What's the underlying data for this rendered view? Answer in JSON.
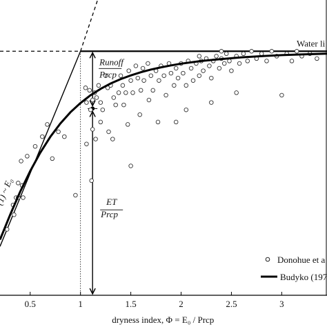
{
  "chart_data": {
    "type": "scatter",
    "title": "",
    "xlabel": "dryness index, Φ = E₀ / Prcp",
    "ylabel": "",
    "xlim": [
      0.2,
      3.45
    ],
    "ylim": [
      0.0,
      1.21
    ],
    "x_ticks": [
      0.5,
      1,
      1.5,
      2,
      2.5,
      3
    ],
    "x_tick_labels": [
      "0.5",
      "1",
      "1.5",
      "2",
      "2.5",
      "3"
    ],
    "grid": false,
    "legend_position": "bottom-right",
    "water_limit": {
      "y": 1.0,
      "label": "Water li"
    },
    "energy_limit_label": "(1) ~ E₀",
    "annotations": {
      "runoff_top": "Runoff",
      "runoff_bottom": "Prcp",
      "et_top": "ET",
      "et_bottom": "Prcp",
      "phi_marker_x": 1.0,
      "arrow_x": 1.12,
      "arrow_split_y": 0.765
    },
    "series": [
      {
        "name": "Donohue et a",
        "kind": "scatter",
        "points": [
          [
            0.27,
            0.27
          ],
          [
            0.33,
            0.37
          ],
          [
            0.36,
            0.4
          ],
          [
            0.38,
            0.46
          ],
          [
            0.42,
            0.45
          ],
          [
            0.41,
            0.55
          ],
          [
            0.47,
            0.57
          ],
          [
            0.55,
            0.61
          ],
          [
            0.62,
            0.65
          ],
          [
            0.67,
            0.7
          ],
          [
            0.78,
            0.67
          ],
          [
            0.84,
            0.65
          ],
          [
            0.72,
            0.56
          ],
          [
            0.95,
            0.41
          ],
          [
            0.34,
            0.33
          ],
          [
            0.38,
            0.4
          ],
          [
            0.43,
            0.4
          ],
          [
            1.05,
            0.85
          ],
          [
            1.06,
            0.79
          ],
          [
            1.09,
            0.84
          ],
          [
            1.1,
            0.76
          ],
          [
            1.12,
            0.8
          ],
          [
            1.14,
            0.83
          ],
          [
            1.16,
            0.81
          ],
          [
            1.12,
            0.68
          ],
          [
            1.15,
            0.64
          ],
          [
            1.11,
            0.47
          ],
          [
            1.18,
            0.86
          ],
          [
            1.2,
            0.79
          ],
          [
            1.22,
            0.76
          ],
          [
            1.2,
            0.71
          ],
          [
            1.25,
            0.9
          ],
          [
            1.27,
            0.85
          ],
          [
            1.3,
            0.86
          ],
          [
            1.33,
            0.81
          ],
          [
            1.35,
            0.78
          ],
          [
            1.28,
            0.67
          ],
          [
            1.32,
            0.64
          ],
          [
            1.38,
            0.83
          ],
          [
            1.4,
            0.9
          ],
          [
            1.42,
            0.86
          ],
          [
            1.43,
            0.78
          ],
          [
            1.45,
            0.83
          ],
          [
            1.48,
            0.92
          ],
          [
            1.5,
            0.88
          ],
          [
            1.52,
            0.83
          ],
          [
            1.47,
            0.7
          ],
          [
            1.55,
            0.94
          ],
          [
            1.57,
            0.89
          ],
          [
            1.6,
            0.84
          ],
          [
            1.62,
            0.93
          ],
          [
            1.63,
            0.88
          ],
          [
            1.59,
            0.74
          ],
          [
            1.67,
            0.95
          ],
          [
            1.7,
            0.9
          ],
          [
            1.68,
            0.8
          ],
          [
            1.72,
            0.84
          ],
          [
            1.75,
            0.92
          ],
          [
            1.78,
            0.88
          ],
          [
            1.8,
            0.94
          ],
          [
            1.77,
            0.71
          ],
          [
            1.83,
            0.9
          ],
          [
            1.85,
            0.82
          ],
          [
            1.88,
            0.95
          ],
          [
            1.9,
            0.91
          ],
          [
            1.93,
            0.86
          ],
          [
            1.95,
            0.93
          ],
          [
            1.97,
            0.89
          ],
          [
            2.0,
            0.95
          ],
          [
            2.02,
            0.91
          ],
          [
            2.05,
            0.86
          ],
          [
            2.07,
            0.96
          ],
          [
            2.1,
            0.93
          ],
          [
            2.12,
            0.88
          ],
          [
            2.15,
            0.95
          ],
          [
            2.18,
            0.9
          ],
          [
            2.2,
            0.96
          ],
          [
            2.22,
            0.92
          ],
          [
            2.25,
            0.97
          ],
          [
            2.28,
            0.94
          ],
          [
            2.3,
            0.89
          ],
          [
            2.32,
            0.96
          ],
          [
            2.35,
            0.98
          ],
          [
            2.38,
            0.93
          ],
          [
            2.4,
            0.97
          ],
          [
            2.43,
            0.95
          ],
          [
            2.45,
            0.99
          ],
          [
            2.48,
            0.96
          ],
          [
            2.5,
            0.92
          ],
          [
            2.55,
            0.98
          ],
          [
            2.58,
            0.95
          ],
          [
            2.62,
            0.99
          ],
          [
            2.66,
            0.96
          ],
          [
            2.7,
            1.0
          ],
          [
            2.75,
            0.97
          ],
          [
            2.8,
            0.99
          ],
          [
            2.85,
            0.96
          ],
          [
            2.9,
            1.0
          ],
          [
            2.95,
            0.98
          ],
          [
            3.05,
            0.99
          ],
          [
            3.1,
            0.96
          ],
          [
            3.15,
            1.0
          ],
          [
            3.2,
            0.98
          ],
          [
            3.28,
            0.99
          ],
          [
            3.35,
            0.97
          ],
          [
            2.3,
            0.79
          ],
          [
            2.55,
            0.83
          ],
          [
            3.0,
            0.82
          ],
          [
            2.05,
            0.76
          ],
          [
            1.5,
            0.53
          ],
          [
            1.95,
            0.71
          ],
          [
            2.18,
            0.98
          ],
          [
            2.4,
            1.0
          ],
          [
            1.06,
            0.62
          ]
        ]
      },
      {
        "name": "Budyko (197",
        "kind": "line",
        "points": [
          [
            0.2,
            0.228
          ],
          [
            0.3,
            0.329
          ],
          [
            0.4,
            0.424
          ],
          [
            0.5,
            0.509
          ],
          [
            0.6,
            0.584
          ],
          [
            0.7,
            0.649
          ],
          [
            0.8,
            0.704
          ],
          [
            0.9,
            0.75
          ],
          [
            1.0,
            0.788
          ],
          [
            1.1,
            0.82
          ],
          [
            1.2,
            0.846
          ],
          [
            1.3,
            0.868
          ],
          [
            1.4,
            0.886
          ],
          [
            1.5,
            0.901
          ],
          [
            1.6,
            0.914
          ],
          [
            1.7,
            0.925
          ],
          [
            1.8,
            0.934
          ],
          [
            1.9,
            0.942
          ],
          [
            2.0,
            0.949
          ],
          [
            2.2,
            0.96
          ],
          [
            2.4,
            0.968
          ],
          [
            2.6,
            0.975
          ],
          [
            2.8,
            0.98
          ],
          [
            3.0,
            0.984
          ],
          [
            3.2,
            0.987
          ],
          [
            3.45,
            0.99
          ]
        ]
      }
    ]
  }
}
